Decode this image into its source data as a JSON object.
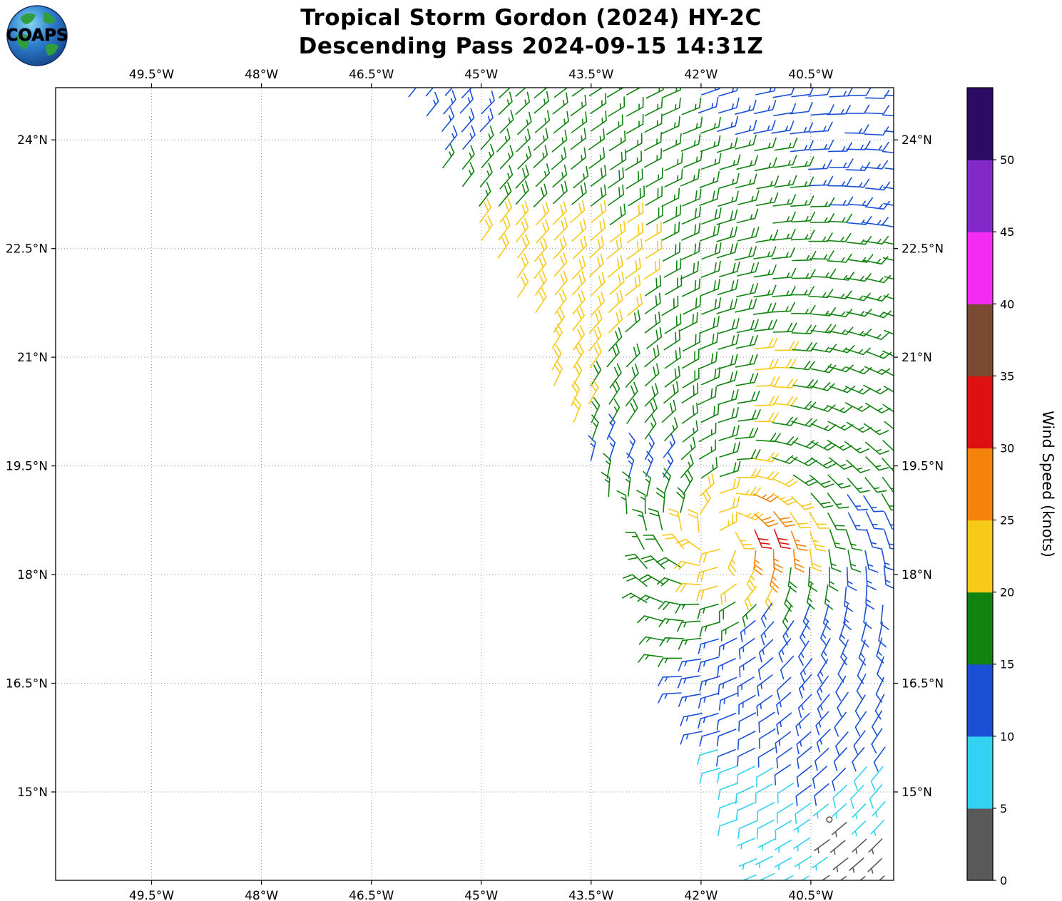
{
  "header": {
    "title": "Tropical Storm Gordon (2024) HY-2C",
    "subtitle": "Descending Pass 2024-09-15 14:31Z",
    "logo_text": "COAPS"
  },
  "chart_data": {
    "type": "wind_barb_map",
    "title": "Tropical Storm Gordon (2024) HY-2C",
    "subtitle": "Descending Pass 2024-09-15 14:31Z",
    "grid": {
      "style": "dotted",
      "color": "#999999"
    },
    "lon_range": [
      -50.81,
      -39.37
    ],
    "lat_range": [
      13.78,
      24.72
    ],
    "lon_ticks": [
      {
        "value": -49.5,
        "label": "49.5°W"
      },
      {
        "value": -48.0,
        "label": "48°W"
      },
      {
        "value": -46.5,
        "label": "46.5°W"
      },
      {
        "value": -45.0,
        "label": "45°W"
      },
      {
        "value": -43.5,
        "label": "43.5°W"
      },
      {
        "value": -42.0,
        "label": "42°W"
      },
      {
        "value": -40.5,
        "label": "40.5°W"
      }
    ],
    "lat_ticks": [
      {
        "value": 24.0,
        "label": "24°N"
      },
      {
        "value": 22.5,
        "label": "22.5°N"
      },
      {
        "value": 21.0,
        "label": "21°N"
      },
      {
        "value": 19.5,
        "label": "19.5°N"
      },
      {
        "value": 18.0,
        "label": "18°N"
      },
      {
        "value": 16.5,
        "label": "16.5°N"
      },
      {
        "value": 15.0,
        "label": "15°N"
      }
    ],
    "colorbar": {
      "label": "Wind Speed (knots)",
      "tick_values": [
        0,
        5,
        10,
        15,
        20,
        25,
        30,
        35,
        40,
        45,
        50
      ],
      "segment_size_knots": 5,
      "segment_colors": [
        "#595959",
        "#33d2f2",
        "#1a4fd6",
        "#108310",
        "#f7c918",
        "#f5820b",
        "#dd1111",
        "#7a4a32",
        "#f32bf3",
        "#8429c9",
        "#2e0b63"
      ]
    },
    "wind_field": {
      "barb_spacing_deg": 0.25,
      "calm_threshold_knots": 2.5,
      "storm_center": {
        "lon": -41.75,
        "lat": 18.55
      },
      "inflow": 0.3,
      "swath_left_edge": [
        [
          24.75,
          -46.2
        ],
        [
          24.0,
          -45.7
        ],
        [
          23.0,
          -45.15
        ],
        [
          22.5,
          -44.95
        ],
        [
          21.0,
          -44.15
        ],
        [
          19.5,
          -43.45
        ],
        [
          18.0,
          -42.9
        ],
        [
          16.5,
          -42.3
        ],
        [
          15.0,
          -41.65
        ],
        [
          13.75,
          -41.3
        ]
      ],
      "speed_control_points": [
        [
          -46.1,
          24.6,
          12
        ],
        [
          -45.4,
          24.2,
          13
        ],
        [
          -44.6,
          24.6,
          16
        ],
        [
          -43.2,
          24.4,
          17
        ],
        [
          -41.8,
          24.6,
          14
        ],
        [
          -40.8,
          24.5,
          12
        ],
        [
          -39.7,
          24.4,
          12
        ],
        [
          -45.2,
          23.4,
          16
        ],
        [
          -44.0,
          23.5,
          17
        ],
        [
          -42.6,
          23.4,
          17
        ],
        [
          -41.2,
          23.5,
          16
        ],
        [
          -39.9,
          23.4,
          13
        ],
        [
          -44.9,
          22.6,
          21
        ],
        [
          -43.9,
          22.5,
          22
        ],
        [
          -42.9,
          22.5,
          21
        ],
        [
          -41.9,
          22.5,
          18
        ],
        [
          -40.8,
          22.5,
          17
        ],
        [
          -39.7,
          22.5,
          15
        ],
        [
          -44.4,
          21.8,
          22
        ],
        [
          -43.3,
          21.8,
          21
        ],
        [
          -42.2,
          21.8,
          18
        ],
        [
          -41.0,
          21.8,
          17
        ],
        [
          -39.8,
          21.8,
          16
        ],
        [
          -44.1,
          21.0,
          22
        ],
        [
          -43.1,
          21.0,
          20
        ],
        [
          -42.1,
          21.0,
          18
        ],
        [
          -41.1,
          21.0,
          21
        ],
        [
          -40.2,
          21.0,
          17
        ],
        [
          -39.6,
          21.0,
          15
        ],
        [
          -43.8,
          20.3,
          21
        ],
        [
          -42.9,
          20.3,
          18
        ],
        [
          -41.9,
          20.4,
          19
        ],
        [
          -41.2,
          20.4,
          21
        ],
        [
          -40.3,
          20.3,
          17
        ],
        [
          -39.6,
          20.3,
          15
        ],
        [
          -43.3,
          19.7,
          14
        ],
        [
          -42.7,
          19.4,
          13
        ],
        [
          -42.0,
          19.6,
          16
        ],
        [
          -41.5,
          19.6,
          20
        ],
        [
          -40.8,
          19.6,
          18
        ],
        [
          -40.0,
          19.6,
          16
        ],
        [
          -43.2,
          19.0,
          16
        ],
        [
          -42.4,
          19.0,
          18
        ],
        [
          -41.7,
          19.0,
          22
        ],
        [
          -41.2,
          18.9,
          30
        ],
        [
          -40.7,
          19.0,
          20
        ],
        [
          -39.9,
          19.0,
          14
        ],
        [
          -42.7,
          18.5,
          17
        ],
        [
          -42.1,
          18.5,
          21
        ],
        [
          -41.6,
          18.5,
          23
        ],
        [
          -41.15,
          18.55,
          32
        ],
        [
          -40.75,
          18.5,
          27
        ],
        [
          -40.2,
          18.5,
          17
        ],
        [
          -39.6,
          18.5,
          13
        ],
        [
          -42.6,
          18.0,
          18
        ],
        [
          -42.0,
          18.0,
          21
        ],
        [
          -41.4,
          18.05,
          24
        ],
        [
          -41.0,
          18.1,
          26
        ],
        [
          -40.6,
          18.0,
          16
        ],
        [
          -39.8,
          18.0,
          13
        ],
        [
          -42.5,
          17.5,
          17
        ],
        [
          -41.8,
          17.5,
          16
        ],
        [
          -41.1,
          17.5,
          14
        ],
        [
          -40.3,
          17.5,
          13
        ],
        [
          -39.6,
          17.5,
          12
        ],
        [
          -42.3,
          16.8,
          15
        ],
        [
          -41.6,
          16.8,
          13
        ],
        [
          -40.8,
          16.8,
          12
        ],
        [
          -39.9,
          16.8,
          12
        ],
        [
          -42.1,
          16.0,
          13
        ],
        [
          -41.3,
          16.0,
          12
        ],
        [
          -40.5,
          15.95,
          15
        ],
        [
          -39.7,
          16.0,
          11
        ],
        [
          -41.8,
          15.4,
          9
        ],
        [
          -41.1,
          15.3,
          9
        ],
        [
          -40.4,
          15.3,
          11
        ],
        [
          -39.7,
          15.4,
          10
        ],
        [
          -41.4,
          14.7,
          8
        ],
        [
          -40.8,
          14.7,
          8
        ],
        [
          -40.15,
          14.55,
          2
        ],
        [
          -39.7,
          14.7,
          6
        ],
        [
          -41.1,
          14.1,
          7
        ],
        [
          -40.5,
          14.1,
          6
        ],
        [
          -40.0,
          14.0,
          4
        ],
        [
          -39.6,
          14.1,
          4
        ]
      ]
    }
  }
}
